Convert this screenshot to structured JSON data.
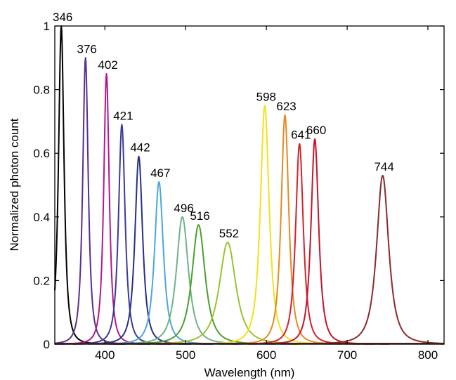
{
  "chart_data": {
    "type": "line",
    "xlabel": "Wavelength (nm)",
    "ylabel": "Normalized photon count",
    "xlim": [
      338,
      820
    ],
    "ylim": [
      0,
      1
    ],
    "grid": false,
    "x_ticks": [
      400,
      500,
      600,
      700,
      800
    ],
    "y_ticks": [
      0,
      0.2,
      0.4,
      0.6,
      0.8,
      1
    ],
    "x_tick_labels": [
      "400",
      "500",
      "600",
      "700",
      "800"
    ],
    "y_tick_labels": [
      "0",
      "0.2",
      "0.4",
      "0.6",
      "0.8",
      "1"
    ],
    "series": [
      {
        "label": "346",
        "peak_wavelength": 346,
        "peak_value": 1.0,
        "color": "#000000"
      },
      {
        "label": "376",
        "peak_wavelength": 376,
        "peak_value": 0.9,
        "color": "#5a2d91"
      },
      {
        "label": "402",
        "peak_wavelength": 402,
        "peak_value": 0.85,
        "color": "#b5178b"
      },
      {
        "label": "421",
        "peak_wavelength": 421,
        "peak_value": 0.69,
        "color": "#3b3a99"
      },
      {
        "label": "442",
        "peak_wavelength": 442,
        "peak_value": 0.59,
        "color": "#253085"
      },
      {
        "label": "467",
        "peak_wavelength": 467,
        "peak_value": 0.51,
        "color": "#4ca6dd"
      },
      {
        "label": "496",
        "peak_wavelength": 496,
        "peak_value": 0.4,
        "color": "#6fb28b"
      },
      {
        "label": "516",
        "peak_wavelength": 516,
        "peak_value": 0.375,
        "color": "#4aa02e"
      },
      {
        "label": "552",
        "peak_wavelength": 552,
        "peak_value": 0.32,
        "color": "#9cc230"
      },
      {
        "label": "598",
        "peak_wavelength": 598,
        "peak_value": 0.75,
        "color": "#f2e11b"
      },
      {
        "label": "623",
        "peak_wavelength": 623,
        "peak_value": 0.72,
        "color": "#e58a22"
      },
      {
        "label": "641",
        "peak_wavelength": 641,
        "peak_value": 0.63,
        "color": "#d8202a"
      },
      {
        "label": "660",
        "peak_wavelength": 660,
        "peak_value": 0.645,
        "color": "#c4142c"
      },
      {
        "label": "744",
        "peak_wavelength": 744,
        "peak_value": 0.53,
        "color": "#8a2a2a"
      }
    ]
  }
}
